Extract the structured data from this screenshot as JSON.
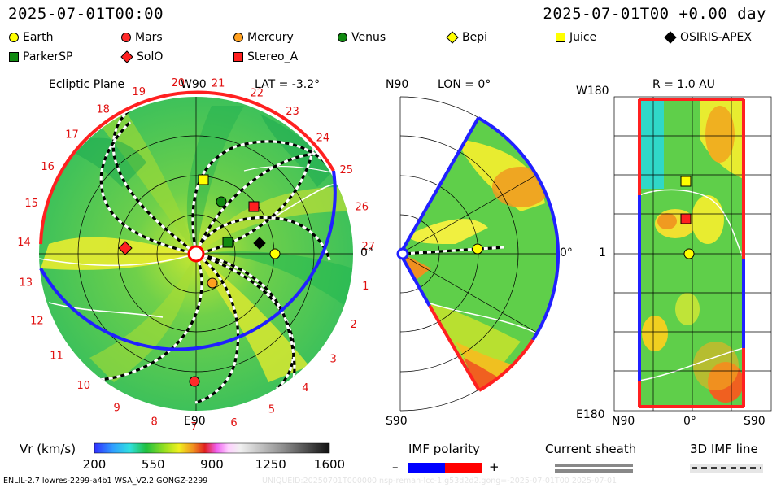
{
  "header": {
    "timestamp_left": "2025-07-01T00:00",
    "timestamp_right": "2025-07-01T00 +0.00 day"
  },
  "legend": {
    "items": [
      {
        "name": "Earth",
        "shape": "circle",
        "color": "#ffff00"
      },
      {
        "name": "Mars",
        "shape": "circle",
        "color": "#ff2a2a"
      },
      {
        "name": "Mercury",
        "shape": "circle",
        "color": "#ffa020"
      },
      {
        "name": "Venus",
        "shape": "circle",
        "color": "#118a11"
      },
      {
        "name": "Bepi",
        "shape": "diamond",
        "color": "#ffff00"
      },
      {
        "name": "Juice",
        "shape": "square",
        "color": "#ffff00"
      },
      {
        "name": "OSIRIS-APEX",
        "shape": "diamond",
        "color": "#000000"
      },
      {
        "name": "ParkerSP",
        "shape": "square",
        "color": "#118a11"
      },
      {
        "name": "SolO",
        "shape": "diamond",
        "color": "#ff2020"
      },
      {
        "name": "Stereo_A",
        "shape": "square",
        "color": "#ff2020"
      }
    ]
  },
  "panels": {
    "ecliptic": {
      "title": "Ecliptic Plane",
      "top_label": "W90",
      "lat_label": "LAT = -3.2°",
      "bottom_label": "E90",
      "right_label": "0°"
    },
    "meridional": {
      "top_label": "N90",
      "lon_label": "LON = 0°",
      "bottom_label": "S90",
      "right_label": "0°"
    },
    "shell": {
      "title": "R = 1.0 AU",
      "top_left_label": "W180",
      "mid_left_label": "1",
      "bottom_left_label": "E180",
      "bottom_labels": [
        "N90",
        "0°",
        "S90"
      ]
    }
  },
  "colorbar": {
    "label": "Vr (km/s)",
    "ticks": [
      "200",
      "550",
      "900",
      "1250",
      "1600"
    ]
  },
  "imf_polarity": {
    "label": "IMF polarity",
    "minus": "–",
    "plus": "+",
    "colors": [
      "#0000ff",
      "#ff0000"
    ]
  },
  "current_sheath": {
    "label": "Current sheath"
  },
  "imf_line": {
    "label": "3D IMF line"
  },
  "footer": {
    "left": "ENLIL-2.7 lowres-2299-a4b1 WSA_V2.2 GONGZ-2299",
    "right": "UNIQUEID:20250701T000000 nsp-reman-lcc-1.g53d2d2.gong=-2025-07-01T00 2025-07-01"
  },
  "chart_data": {
    "type": "heatmap",
    "title": "Vr (km/s)",
    "ecliptic_radial_label_numbers": [
      "20",
      "21",
      "22",
      "23",
      "24",
      "25",
      "26",
      "27",
      "1",
      "2",
      "3",
      "4",
      "5",
      "6",
      "7",
      "8",
      "9",
      "10",
      "11",
      "12",
      "13",
      "14",
      "15",
      "16",
      "17",
      "18",
      "19"
    ],
    "colorscale_range": [
      200,
      1600
    ],
    "bodies": [
      "Earth",
      "Mars",
      "Mercury",
      "Venus",
      "Bepi",
      "Juice",
      "OSIRIS-APEX",
      "ParkerSP",
      "SolO",
      "Stereo_A"
    ]
  }
}
